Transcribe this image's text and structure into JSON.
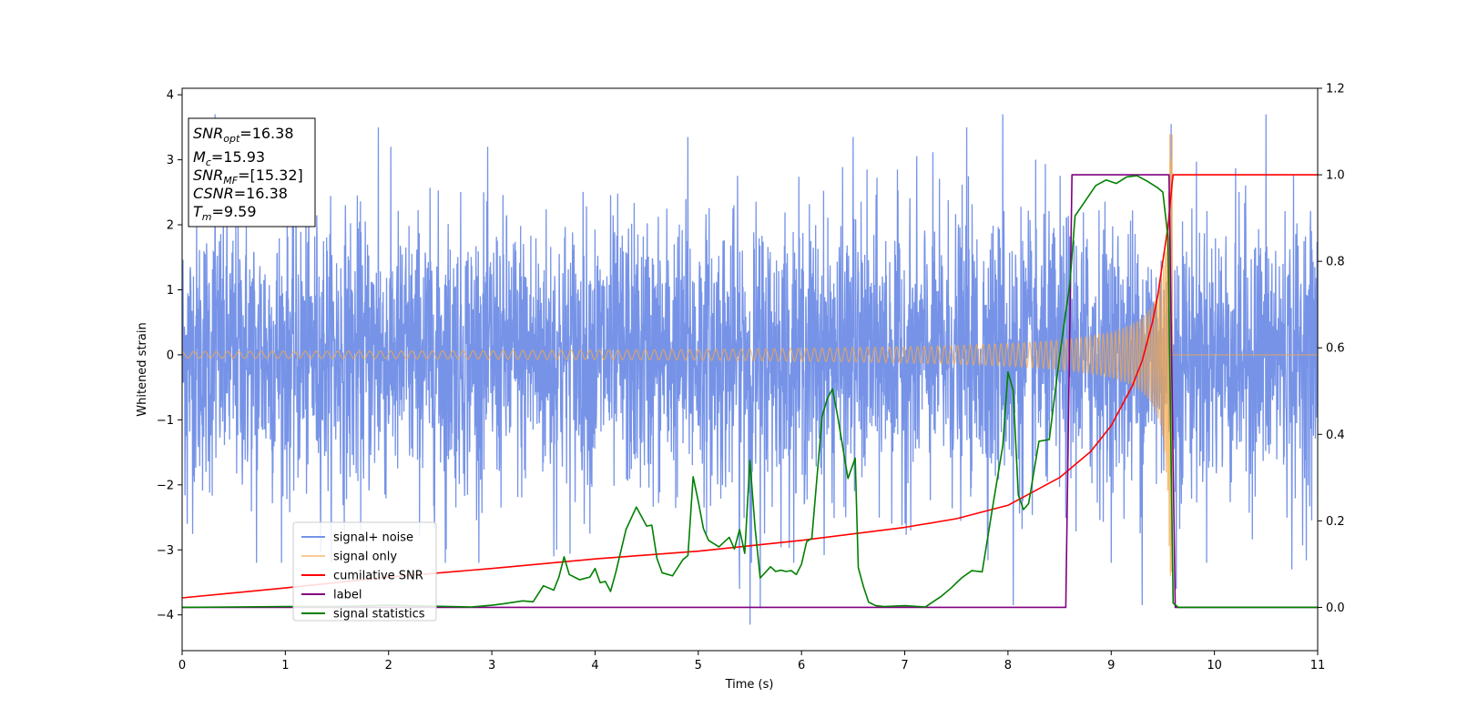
{
  "chart_data": {
    "type": "line",
    "xlabel": "Time (s)",
    "ylabel": "Whitened strain",
    "xlim": [
      0,
      11
    ],
    "ylim_left": [
      -4.55,
      4.1
    ],
    "ylim_right": [
      -0.1,
      1.2
    ],
    "x_ticks": [
      0,
      1,
      2,
      3,
      4,
      5,
      6,
      7,
      8,
      9,
      10,
      11
    ],
    "y_ticks_left": [
      4,
      3,
      2,
      1,
      0,
      -1,
      -2,
      -3,
      -4
    ],
    "y_ticks_left_labels": [
      "4",
      "3",
      "2",
      "1",
      "0",
      "−1",
      "−2",
      "−3",
      "−4"
    ],
    "y_ticks_right": [
      1.2,
      1.0,
      0.8,
      0.6,
      0.4,
      0.2,
      0.0
    ],
    "y_ticks_right_labels": [
      "1.2",
      "1.0",
      "0.8",
      "0.6",
      "0.4",
      "0.2",
      "0.0"
    ],
    "grid": false,
    "legend_position": "lower-left",
    "info_box": {
      "snr_opt": {
        "main": "SNR",
        "sub": "opt",
        "value": "=16.38"
      },
      "mc": {
        "main": "M",
        "sub": "c",
        "value": "=15.93"
      },
      "snr_mf": {
        "main": "SNR",
        "sub": "MF",
        "value": "=[15.32]"
      },
      "csnr": {
        "main": "CSNR",
        "value": "=16.38"
      },
      "tm": {
        "main": "T",
        "sub": "m",
        "value": "=9.59"
      }
    },
    "series": [
      {
        "name": "signal+ noise",
        "axis": "left",
        "color": "#6f8de6",
        "style": "noise",
        "x_range": [
          0,
          11
        ],
        "amplitude_range": [
          -4.2,
          3.7
        ],
        "peaks": [
          {
            "x": 0.32,
            "y": 3.7
          },
          {
            "x": 1.9,
            "y": 3.5
          },
          {
            "x": 3.6,
            "y": 3.4
          },
          {
            "x": 4.9,
            "y": 3.35
          },
          {
            "x": 6.5,
            "y": 3.35
          },
          {
            "x": 7.6,
            "y": 3.5
          },
          {
            "x": 7.95,
            "y": 3.7
          },
          {
            "x": 9.58,
            "y": 3.55
          },
          {
            "x": 10.5,
            "y": 3.7
          },
          {
            "x": 0.05,
            "y": -2.6
          },
          {
            "x": 0.72,
            "y": -3.2
          },
          {
            "x": 2.55,
            "y": -3.2
          },
          {
            "x": 3.6,
            "y": -3.1
          },
          {
            "x": 5.4,
            "y": -3.6
          },
          {
            "x": 5.5,
            "y": -4.15
          },
          {
            "x": 5.6,
            "y": -3.9
          },
          {
            "x": 8.05,
            "y": -3.85
          },
          {
            "x": 9.3,
            "y": -3.85
          },
          {
            "x": 9.63,
            "y": -3.6
          },
          {
            "x": 10.75,
            "y": -3.3
          }
        ]
      },
      {
        "name": "signal only",
        "axis": "left",
        "color": "#f5a84c",
        "style": "chirp",
        "t_merger": 9.59,
        "peak_amplitude": 3.4,
        "x_range": [
          0,
          11
        ]
      },
      {
        "name": "cumilative SNR",
        "axis": "right",
        "color": "#ff0000",
        "x": [
          0,
          1,
          2,
          3,
          4,
          5,
          6,
          7,
          7.5,
          8,
          8.5,
          8.8,
          9.0,
          9.2,
          9.3,
          9.4,
          9.45,
          9.5,
          9.55,
          9.59,
          9.6,
          11
        ],
        "values": [
          0.022,
          0.045,
          0.07,
          0.09,
          0.112,
          0.13,
          0.155,
          0.185,
          0.205,
          0.236,
          0.3,
          0.36,
          0.42,
          0.51,
          0.57,
          0.66,
          0.72,
          0.8,
          0.88,
          0.98,
          1.0,
          1.0
        ]
      },
      {
        "name": "label",
        "axis": "right",
        "color": "#800080",
        "x": [
          0,
          8.56,
          8.62,
          9.56,
          9.62,
          11
        ],
        "values": [
          0,
          0,
          1,
          1,
          0,
          0
        ]
      },
      {
        "name": "signal statistics",
        "axis": "right",
        "color": "#008000",
        "x": [
          0,
          0.5,
          1,
          1.5,
          2,
          2.2,
          2.4,
          2.6,
          2.8,
          3.0,
          3.1,
          3.3,
          3.4,
          3.5,
          3.6,
          3.65,
          3.7,
          3.75,
          3.85,
          3.95,
          4.0,
          4.05,
          4.1,
          4.15,
          4.2,
          4.3,
          4.4,
          4.5,
          4.55,
          4.6,
          4.65,
          4.75,
          4.85,
          4.9,
          4.95,
          5.0,
          5.05,
          5.1,
          5.2,
          5.3,
          5.35,
          5.4,
          5.45,
          5.5,
          5.55,
          5.6,
          5.7,
          5.75,
          5.8,
          5.85,
          5.9,
          5.95,
          6.0,
          6.05,
          6.1,
          6.2,
          6.25,
          6.3,
          6.35,
          6.45,
          6.52,
          6.55,
          6.6,
          6.65,
          6.72,
          6.8,
          7.0,
          7.2,
          7.35,
          7.45,
          7.55,
          7.65,
          7.75,
          7.85,
          7.95,
          8.0,
          8.05,
          8.1,
          8.15,
          8.2,
          8.3,
          8.4,
          8.5,
          8.6,
          8.65,
          8.75,
          8.85,
          8.95,
          9.05,
          9.15,
          9.25,
          9.35,
          9.45,
          9.5,
          9.55,
          9.6,
          9.65,
          11
        ],
        "values": [
          0,
          0.001,
          0.002,
          0.002,
          0.005,
          0.004,
          0.003,
          0.002,
          0.001,
          0.005,
          0.008,
          0.015,
          0.013,
          0.05,
          0.04,
          0.07,
          0.117,
          0.076,
          0.064,
          0.07,
          0.09,
          0.057,
          0.06,
          0.037,
          0.08,
          0.18,
          0.232,
          0.188,
          0.19,
          0.113,
          0.08,
          0.073,
          0.11,
          0.12,
          0.302,
          0.245,
          0.182,
          0.155,
          0.14,
          0.162,
          0.135,
          0.18,
          0.125,
          0.34,
          0.184,
          0.068,
          0.094,
          0.083,
          0.086,
          0.083,
          0.085,
          0.076,
          0.1,
          0.152,
          0.16,
          0.442,
          0.483,
          0.505,
          0.442,
          0.298,
          0.345,
          0.092,
          0.048,
          0.012,
          0.004,
          0.002,
          0.004,
          0.001,
          0.025,
          0.045,
          0.068,
          0.085,
          0.082,
          0.23,
          0.374,
          0.544,
          0.502,
          0.26,
          0.226,
          0.24,
          0.384,
          0.388,
          0.58,
          0.75,
          0.905,
          0.94,
          0.975,
          0.988,
          0.98,
          0.995,
          0.998,
          0.985,
          0.97,
          0.96,
          0.855,
          0.01,
          0,
          0
        ]
      }
    ]
  }
}
